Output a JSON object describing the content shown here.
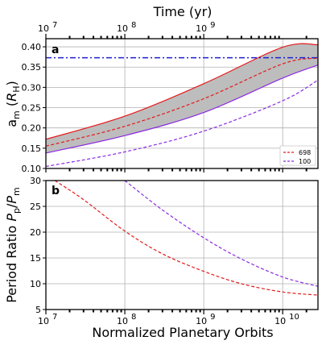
{
  "figure": {
    "top_xlabel": "Time (yr)",
    "top_xticks": [
      {
        "value": 10000000,
        "label": "10"
      },
      {
        "value": 100000000,
        "label": "10"
      },
      {
        "value": 1000000000,
        "label": "10"
      }
    ],
    "top_xtick_exp": [
      "7",
      "8",
      "9"
    ],
    "bottom_xlabel": "Normalized Planetary Orbits",
    "bottom_xticks_base": "10",
    "bottom_xticks_exp": [
      "7",
      "8",
      "9",
      "10"
    ]
  },
  "chart_data": [
    {
      "panel": "a",
      "type": "line",
      "xscale": "log",
      "xlim": [
        10000000,
        28000000000
      ],
      "ylim": [
        0.1,
        0.42
      ],
      "ylabel_main": "a",
      "ylabel_sub": "m",
      "ylabel_unit_main": "R",
      "ylabel_unit_sub": "H",
      "yticks": [
        "0.10",
        "0.15",
        "0.20",
        "0.25",
        "0.30",
        "0.35",
        "0.40"
      ],
      "grid": true,
      "legend_placement": "lower-right",
      "reference_line": {
        "y": 0.373,
        "color": "#1f1fd0",
        "style": "dash-dot"
      },
      "band": {
        "color": "#bdbdbd",
        "upper": [
          [
            10000000,
            0.172
          ],
          [
            100000000,
            0.229
          ],
          [
            1000000000,
            0.309
          ],
          [
            10000000000,
            0.399
          ],
          [
            28000000000,
            0.405
          ]
        ],
        "lower": [
          [
            10000000,
            0.138
          ],
          [
            100000000,
            0.181
          ],
          [
            1000000000,
            0.238
          ],
          [
            10000000000,
            0.323
          ],
          [
            28000000000,
            0.355
          ]
        ]
      },
      "series": [
        {
          "name": "698",
          "color": "#e41a1c",
          "style": "dashed",
          "x": [
            10000000,
            100000000,
            1000000000,
            10000000000,
            28000000000
          ],
          "y": [
            0.155,
            0.204,
            0.272,
            0.358,
            0.372
          ]
        },
        {
          "name": "100",
          "color": "#8a2be2",
          "style": "dashed",
          "x": [
            10000000,
            100000000,
            1000000000,
            10000000000,
            28000000000
          ],
          "y": [
            0.105,
            0.141,
            0.192,
            0.267,
            0.318
          ]
        }
      ]
    },
    {
      "panel": "b",
      "type": "line",
      "xscale": "log",
      "xlim": [
        10000000,
        28000000000
      ],
      "ylim": [
        5,
        30
      ],
      "ylabel": "Period Ratio",
      "ylabel_math_p": "P",
      "ylabel_math_p_sub": "p",
      "ylabel_math_m": "P",
      "ylabel_math_m_sub": "m",
      "yticks": [
        "5",
        "10",
        "15",
        "20",
        "25",
        "30"
      ],
      "grid": true,
      "series": [
        {
          "color": "#e41a1c",
          "style": "dashed",
          "x": [
            13000000,
            30000000,
            100000000,
            300000000,
            1000000000,
            3000000000,
            10000000000,
            28000000000
          ],
          "y": [
            30,
            26.3,
            20.2,
            15.8,
            12.4,
            10.0,
            8.4,
            7.8
          ]
        },
        {
          "color": "#8a2be2",
          "style": "dashed",
          "x": [
            100000000,
            300000000,
            1000000000,
            3000000000,
            10000000000,
            28000000000
          ],
          "y": [
            30,
            24.3,
            18.9,
            14.8,
            11.3,
            9.5
          ]
        }
      ]
    }
  ]
}
